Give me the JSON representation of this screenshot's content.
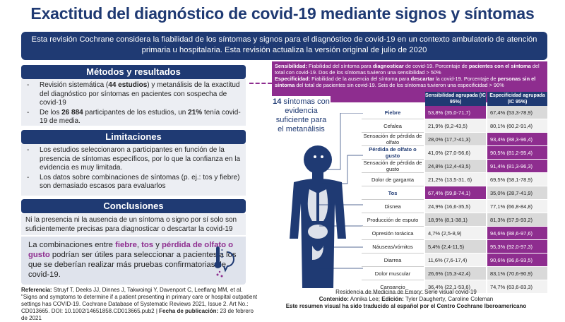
{
  "title": "Exactitud del diagnóstico de covid-19 mediante signos y síntomas",
  "intro": "Esta revisión Cochrane considera la fiabilidad de los síntomas y signos para el diagnóstico de covid-19 en un contexto ambulatorio de atención primaria u hospitalaria. Esta revisión actualiza la versión original de julio de 2020",
  "methods": {
    "heading": "Métodos y resultados",
    "item1_a": "Revisión sistemática (",
    "item1_b": "44 estudios",
    "item1_c": ") y metanálisis de la exactitud del diagnóstico por síntomas en pacientes con sospecha de covid-19",
    "item2_a": "De los ",
    "item2_b": "26 884",
    "item2_c": " participantes de los estudios, un ",
    "item2_d": "21%",
    "item2_e": " tenía covid-19 de media."
  },
  "limitations": {
    "heading": "Limitaciones",
    "item1": "Los estudios seleccionaron a participantes en función de la presencia de síntomas específicos, por lo que la confianza en la evidencia es muy limitada.",
    "item2": "Los datos sobre combinaciones de síntomas (p. ej.: tos y fiebre) son demasiado escasos para evaluarlos"
  },
  "conclusions": {
    "heading": "Conclusiones",
    "text": "Ni la presencia ni la ausencia de un síntoma o signo por sí solo son suficientemente precisas para diagnosticar o descartar la covid-19",
    "combo_a": "La combinaciones entre ",
    "combo_hl1": "fiebre",
    "combo_sep1": ", ",
    "combo_hl2": "tos",
    "combo_sep2": " y ",
    "combo_hl3": "pérdida de olfato o gusto",
    "combo_b": " podrían ser útiles para seleccionar a pacientes a los que se deberían realizar más pruebas confirmatorias de covid-19."
  },
  "reference": {
    "label": "Referencia:",
    "text": " Struyf T, Deeks JJ, Dinnes J, Takwoingi Y, Davenport C, Leeflang MM, et al. \"Signs and symptoms to determine if a patient presenting in primary care or hospital outpatient settings has COVID-19. Cochrane Database of Systematic Reviews 2021, Issue 2. Art No.: CD013665. DOI: 10.1002/14651858.CD013665.pub2 | ",
    "date_label": "Fecha de publicación:",
    "date": " 23 de febrero de 2021"
  },
  "definitions": {
    "sens_label": "Sensibilidad:",
    "sens_a": " Fiabilidad del síntoma para ",
    "sens_b": "diagnosticar",
    "sens_c": " de covid-19. Porcentaje de ",
    "sens_d": "pacientes con el síntoma",
    "sens_e": " del total con covid-19. Dos de los síntomas tuvieron una sensibilidad > 50%",
    "spec_label": "Especificidad:",
    "spec_a": " Fiabilidad de la ausencia del síntoma para ",
    "spec_b": "descartar",
    "spec_c": " la covid-19. Porcentaje de ",
    "spec_d": "personas sin el síntoma",
    "spec_e": " del total de pacientes sin covid-19. Seis de los síntomas tuvieron una especificidad > 90%"
  },
  "box14": {
    "number": "14",
    "text": " síntomas con evidencia suficiente para el metanálisis"
  },
  "table": {
    "col_sens": "Sensibilidad agrupada (IC 95%)",
    "col_spec": "Especificidad agrupada (IC 95%)",
    "rows": [
      {
        "symptom": "Fiebre",
        "sens": "53,8% (35,0-71,7)",
        "spec": "67,4% (53,3-78,9)",
        "bold": true,
        "sens_hl": true,
        "spec_hl": false
      },
      {
        "symptom": "Cefalea",
        "sens": "21,9% (9,2-43,5)",
        "spec": "80,1% (60,2-91,4)",
        "bold": false,
        "sens_hl": false,
        "spec_hl": false
      },
      {
        "symptom": "Sensación de pérdida de olfato",
        "sens": "28,0% (17,7-41,3)",
        "spec": "93,4% (88,3-96,4)",
        "bold": false,
        "sens_hl": false,
        "spec_hl": true
      },
      {
        "symptom": "Pérdida de olfato o gusto",
        "sens": "41,0% (27,0-56,6)",
        "spec": "90,5% (81,2-95,4)",
        "bold": true,
        "sens_hl": false,
        "spec_hl": true
      },
      {
        "symptom": "Sensación de pérdida de gusto",
        "sens": "24,8% (12,4-43,5)",
        "spec": "91,4% (81,3-96,3)",
        "bold": false,
        "sens_hl": false,
        "spec_hl": true
      },
      {
        "symptom": "Dolor de garganta",
        "sens": "21,2% (13,5-31, 6)",
        "spec": "69,5% (58,1-78,9)",
        "bold": false,
        "sens_hl": false,
        "spec_hl": false
      },
      {
        "symptom": "Tos",
        "sens": "67,4% (59,8-74,1)",
        "spec": "35,0% (28,7-41,9)",
        "bold": true,
        "sens_hl": true,
        "spec_hl": false
      },
      {
        "symptom": "Disnea",
        "sens": "24,9% (16,6-35,5)",
        "spec": "77,1% (66,8-84,8)",
        "bold": false,
        "sens_hl": false,
        "spec_hl": false
      },
      {
        "symptom": "Producción de esputo",
        "sens": "18,9% (8,1-38,1)",
        "spec": "81,3% (57,9-93,2)",
        "bold": false,
        "sens_hl": false,
        "spec_hl": false
      },
      {
        "symptom": "Opresión torácica",
        "sens": "4,7% (2,5-8,9)",
        "spec": "94,6% (88,6-97,6)",
        "bold": false,
        "sens_hl": false,
        "spec_hl": true
      },
      {
        "symptom": "Náuseas/vómitos",
        "sens": "5,4% (2,4-11,5)",
        "spec": "95,3% (92,0-97,3)",
        "bold": false,
        "sens_hl": false,
        "spec_hl": true
      },
      {
        "symptom": "Diarrea",
        "sens": "11,6% (7,6-17,4)",
        "spec": "90,6% (86,6-93,5)",
        "bold": false,
        "sens_hl": false,
        "spec_hl": true
      },
      {
        "symptom": "Dolor muscular",
        "sens": "26,6% (15,3-42,4)",
        "spec": "83,1% (70,6-90,9)",
        "bold": false,
        "sens_hl": false,
        "spec_hl": false
      },
      {
        "symptom": "Cansancio",
        "sens": "36,4% (22,1-53,6)",
        "spec": "74,7% (63,6-83,3)",
        "bold": false,
        "sens_hl": false,
        "spec_hl": false
      }
    ]
  },
  "credits": {
    "line1": "Residencia de Medicina de Emory: Serie visual covid-19",
    "content_label": "Contenido:",
    "content": " Annika Lee; ",
    "edition_label": "Edición:",
    "edition": " Tyler Daugherty, Caroline Coleman",
    "line3": "Este resumen visual ha sido traducido al español por el Centro Cochrane Iberoamericano"
  },
  "colors": {
    "navy": "#1f3a73",
    "purple": "#8e2d8f",
    "grey": "#eceef3",
    "cell_grey": "#d9d9d9",
    "cell_light": "#f2f2f2"
  }
}
